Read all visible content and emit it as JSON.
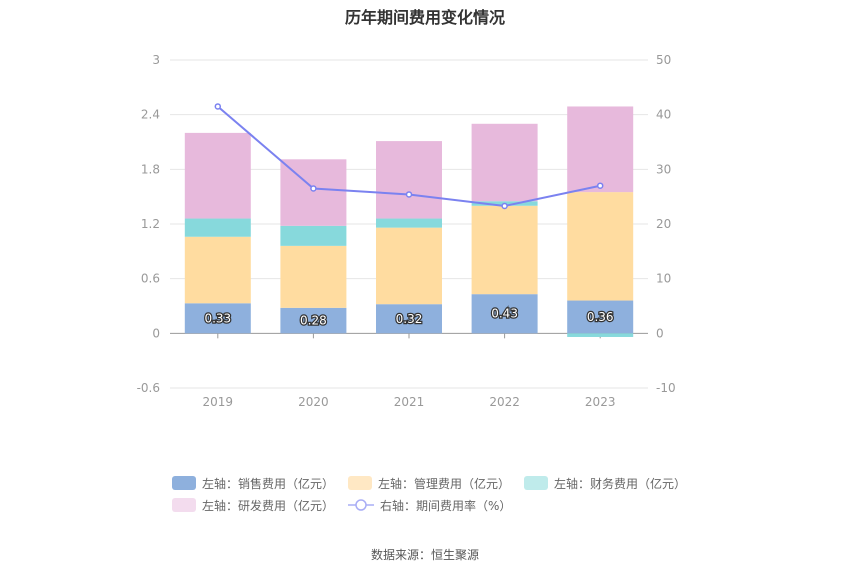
{
  "chart_data": {
    "type": "bar",
    "title": "历年期间费用变化情况",
    "categories": [
      "2019",
      "2020",
      "2021",
      "2022",
      "2023"
    ],
    "left_axis": {
      "ticks": [
        "3",
        "2.4",
        "1.8",
        "1.2",
        "0.6",
        "0",
        "-0.6"
      ],
      "min": -0.6,
      "max": 3,
      "unit": "亿元"
    },
    "right_axis": {
      "ticks": [
        "50",
        "40",
        "30",
        "20",
        "10",
        "0",
        "-10"
      ],
      "min": -10,
      "max": 50,
      "unit": "%"
    },
    "series": [
      {
        "name": "左轴：销售费用（亿元）",
        "type": "bar",
        "color": "#8eb0dd",
        "values": [
          0.33,
          0.28,
          0.32,
          0.43,
          0.36
        ],
        "labels": [
          "0.33",
          "0.28",
          "0.32",
          "0.43",
          "0.36"
        ]
      },
      {
        "name": "左轴：管理费用（亿元）",
        "type": "bar",
        "color": "#ffdca0",
        "values": [
          0.73,
          0.68,
          0.84,
          0.97,
          1.19
        ]
      },
      {
        "name": "左轴：财务费用（亿元）",
        "type": "bar",
        "color": "#87d9dc",
        "values": [
          0.2,
          0.22,
          0.1,
          0.05,
          -0.04
        ]
      },
      {
        "name": "左轴：研发费用（亿元）",
        "type": "bar",
        "color": "#e7b9dc",
        "values": [
          0.94,
          0.73,
          0.85,
          0.85,
          0.94
        ]
      },
      {
        "name": "右轴：期间费用率（%）",
        "type": "line",
        "color": "#7b82f0",
        "values": [
          41.5,
          26.5,
          25.4,
          23.3,
          27
        ]
      }
    ]
  },
  "source": "数据来源：恒生聚源"
}
